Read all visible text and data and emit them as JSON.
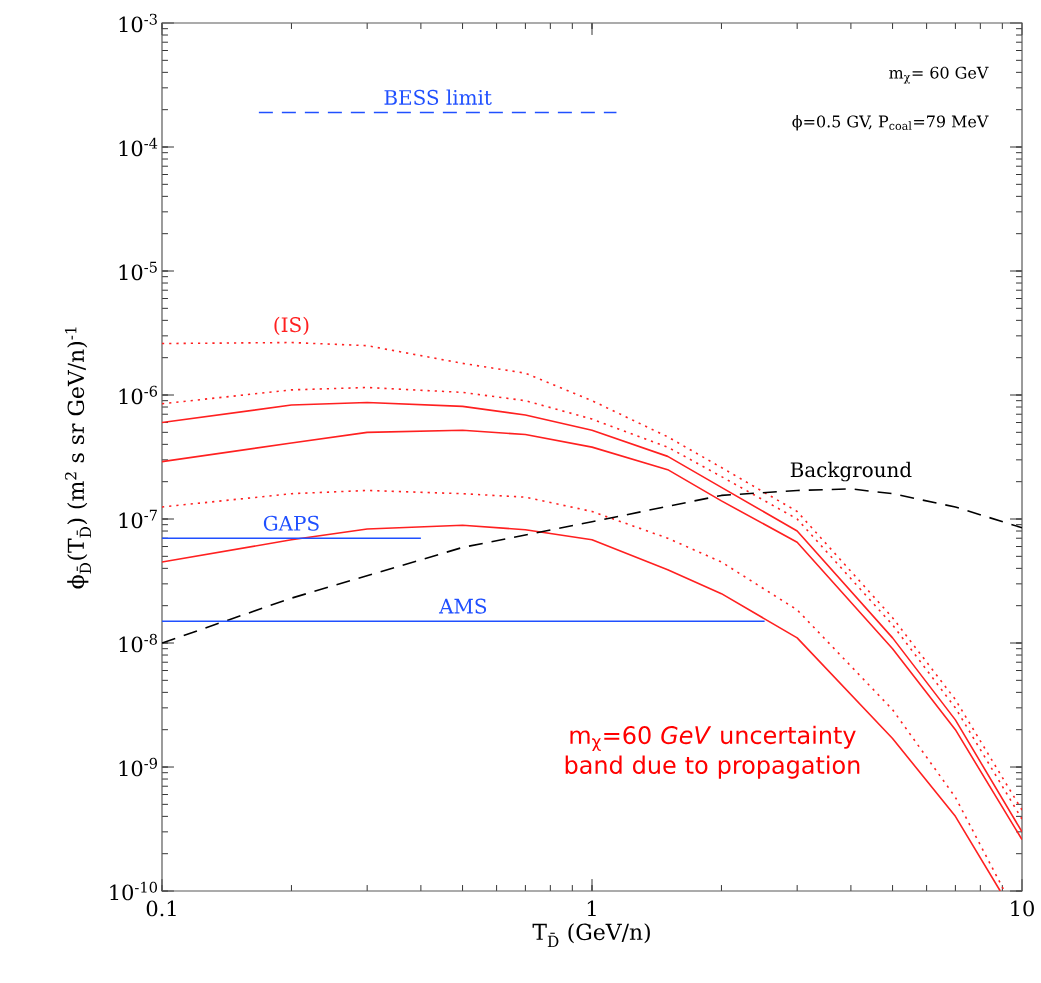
{
  "chart_data": {
    "type": "line",
    "log": "xy",
    "marker": "none",
    "xlabel": "T$_{D̄}$   (GeV/n)",
    "ylabel": "ϕ$_{D̄}$(T$_{D̄}$)   (m$^{2}$ s sr GeV/n)$^{-1}$",
    "xlim": [
      0.1,
      10
    ],
    "ylim": [
      1e-10,
      0.001
    ],
    "xticks": [
      0.1,
      1,
      10
    ],
    "yticks": [
      {
        "value": 1e-10,
        "label": "10$^{-10}$"
      },
      {
        "value": 1e-09,
        "label": "10$^{-9}$"
      },
      {
        "value": 1e-08,
        "label": "10$^{-8}$"
      },
      {
        "value": 1e-07,
        "label": "10$^{-7}$"
      },
      {
        "value": 1e-06,
        "label": "10$^{-6}$"
      },
      {
        "value": 1e-05,
        "label": "10$^{-5}$"
      },
      {
        "value": 0.0001,
        "label": "10$^{-4}$"
      },
      {
        "value": 0.001,
        "label": "10$^{-3}$"
      }
    ],
    "annotations": [
      "m$_{χ}$= 60 GeV",
      "ϕ=0.5 GV, P$_{coal}$=79 MeV",
      "m$_{χ}$=60 *GeV* uncertainty band due to propagation"
    ],
    "series": [
      {
        "name": "(IS)",
        "color": "#ff2020",
        "line_style": "dotted",
        "x": [
          0.1,
          0.2,
          0.3,
          0.5,
          0.7,
          1,
          1.5,
          2,
          3,
          5,
          7,
          10
        ],
        "values": [
          2.6e-06,
          2.65e-06,
          2.5e-06,
          1.8e-06,
          1.5e-06,
          9e-07,
          4.6e-07,
          2.6e-07,
          1.15e-07,
          1.6e-08,
          3.5e-09,
          4.5e-10
        ]
      },
      {
        "color": "#ff2020",
        "line_style": "dotted",
        "x": [
          0.1,
          0.2,
          0.3,
          0.5,
          0.7,
          1,
          1.5,
          2,
          3,
          5,
          7,
          10
        ],
        "values": [
          8.5e-07,
          1.1e-06,
          1.15e-06,
          1.05e-06,
          9e-07,
          6.4e-07,
          3.8e-07,
          2.2e-07,
          1e-07,
          1.4e-08,
          3e-09,
          3.8e-10
        ]
      },
      {
        "color": "#ff2020",
        "line_style": "solid",
        "x": [
          0.1,
          0.2,
          0.3,
          0.5,
          0.7,
          1,
          1.5,
          2,
          3,
          5,
          7,
          10
        ],
        "values": [
          6e-07,
          8.3e-07,
          8.7e-07,
          8.1e-07,
          6.9e-07,
          5.2e-07,
          3.2e-07,
          1.8e-07,
          8e-08,
          1.1e-08,
          2.4e-09,
          3e-10
        ]
      },
      {
        "color": "#ff2020",
        "line_style": "solid",
        "x": [
          0.1,
          0.2,
          0.3,
          0.5,
          0.7,
          1,
          1.5,
          2,
          3,
          5,
          7,
          10
        ],
        "values": [
          2.9e-07,
          4.1e-07,
          5e-07,
          5.2e-07,
          4.8e-07,
          3.8e-07,
          2.5e-07,
          1.4e-07,
          6.5e-08,
          9e-09,
          2e-09,
          2.6e-10
        ]
      },
      {
        "color": "#ff2020",
        "line_style": "dotted",
        "x": [
          0.1,
          0.2,
          0.3,
          0.5,
          0.7,
          1,
          1.5,
          2,
          3,
          5,
          7,
          9.1
        ],
        "values": [
          1.25e-07,
          1.6e-07,
          1.7e-07,
          1.6e-07,
          1.5e-07,
          1.15e-07,
          7e-08,
          4.5e-08,
          1.85e-08,
          2.9e-09,
          5.7e-10,
          1e-10
        ]
      },
      {
        "color": "#ff2020",
        "line_style": "solid",
        "x": [
          0.1,
          0.2,
          0.3,
          0.5,
          0.7,
          1,
          1.5,
          2,
          3,
          5,
          7,
          8.9
        ],
        "values": [
          4.5e-08,
          6.8e-08,
          8.3e-08,
          8.9e-08,
          8.2e-08,
          6.8e-08,
          3.9e-08,
          2.5e-08,
          1.1e-08,
          1.7e-09,
          4e-10,
          1e-10
        ]
      },
      {
        "name": "Background",
        "color": "#000000",
        "line_style": "dashed",
        "x": [
          0.1,
          0.2,
          0.5,
          1,
          2,
          3,
          4,
          5,
          7,
          10
        ],
        "values": [
          1e-08,
          2.3e-08,
          5.9e-08,
          9.5e-08,
          1.55e-07,
          1.7e-07,
          1.75e-07,
          1.6e-07,
          1.25e-07,
          8.5e-08
        ]
      },
      {
        "name": "BESS limit",
        "color": "#2050ff",
        "line_style": "dashed",
        "x": [
          0.168,
          1.14
        ],
        "values": [
          0.00019,
          0.00019
        ]
      },
      {
        "name": "GAPS",
        "color": "#2050ff",
        "line_style": "solid",
        "x": [
          0.1,
          0.4
        ],
        "values": [
          7e-08,
          7e-08
        ]
      },
      {
        "name": "AMS",
        "color": "#2050ff",
        "line_style": "solid",
        "x": [
          0.1,
          2.52
        ],
        "values": [
          1.5e-08,
          1.5e-08
        ]
      }
    ]
  }
}
